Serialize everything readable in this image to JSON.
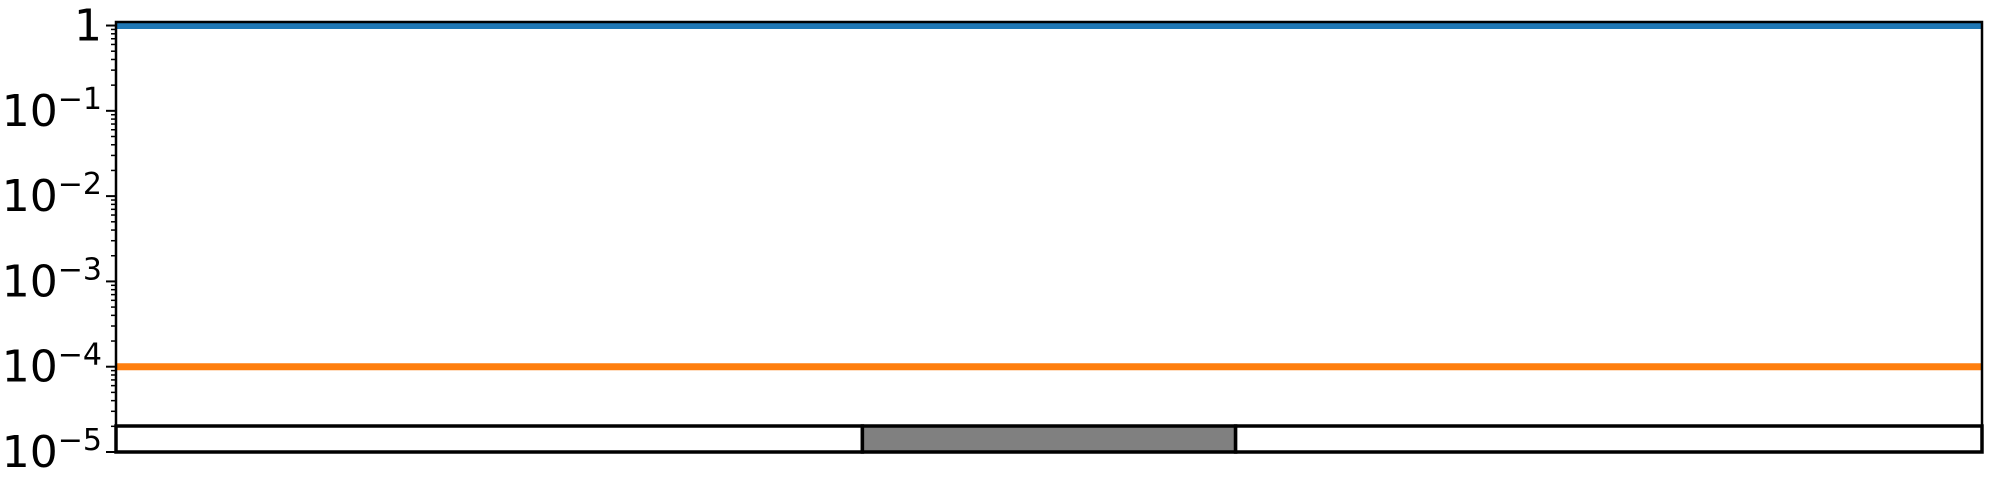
{
  "chart_data": {
    "type": "line",
    "yscale": "log",
    "ylim": [
      1e-05,
      1.1
    ],
    "xlim": [
      0,
      1
    ],
    "grid": false,
    "y_ticks": [
      {
        "value": 1,
        "base": "1",
        "exp": ""
      },
      {
        "value": 0.1,
        "base": "10",
        "exp": "−1"
      },
      {
        "value": 0.01,
        "base": "10",
        "exp": "−2"
      },
      {
        "value": 0.001,
        "base": "10",
        "exp": "−3"
      },
      {
        "value": 0.0001,
        "base": "10",
        "exp": "−4"
      },
      {
        "value": 1e-05,
        "base": "10",
        "exp": "−5"
      }
    ],
    "series": [
      {
        "x": [
          0,
          1
        ],
        "values": [
          1,
          1
        ],
        "color": "#1f77b4"
      },
      {
        "x": [
          0,
          1
        ],
        "values": [
          0.0001,
          0.0001
        ],
        "color": "#ff7f0e"
      }
    ],
    "bar_track": {
      "segments": [
        {
          "start": 0,
          "end": 0.4,
          "fill": "#ffffff"
        },
        {
          "start": 0.4,
          "end": 0.6,
          "fill": "#808080"
        },
        {
          "start": 0.6,
          "end": 1,
          "fill": "#ffffff"
        }
      ]
    }
  }
}
